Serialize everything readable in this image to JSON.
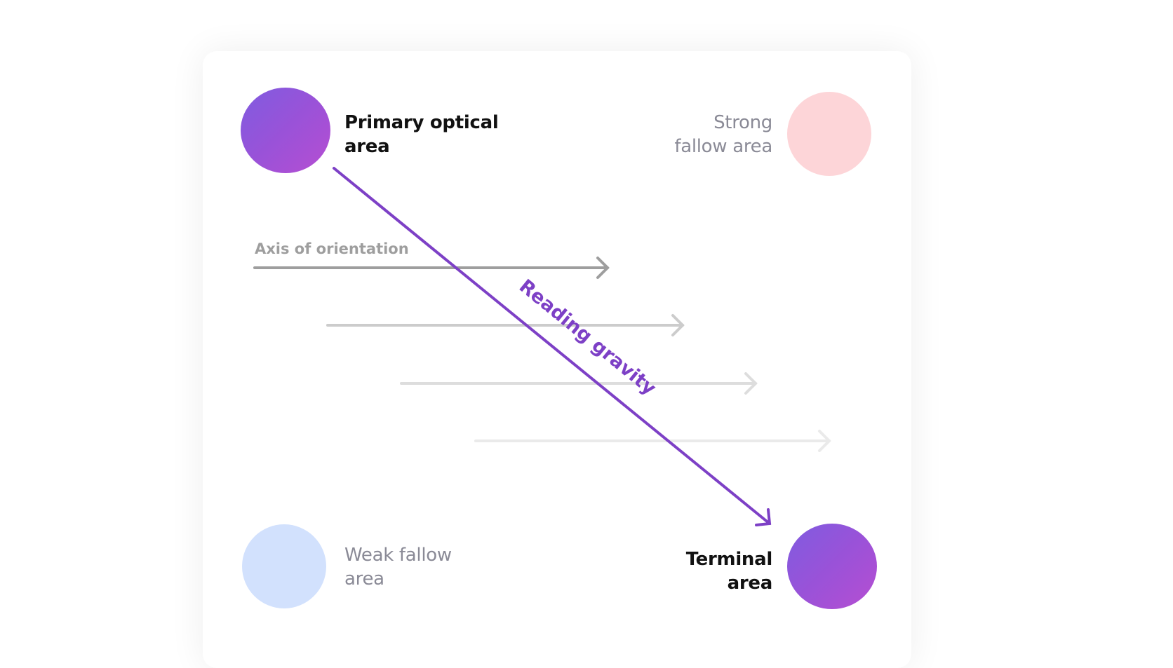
{
  "areas": {
    "primary": {
      "label_line1": "Primary optical",
      "label_line2": "area",
      "color": "#9a52d8"
    },
    "strong": {
      "label_line1": "Strong",
      "label_line2": "fallow area",
      "color": "#fdd5d8"
    },
    "weak": {
      "label_line1": "Weak fallow",
      "label_line2": "area",
      "color": "#d2e1fd"
    },
    "terminal": {
      "label_line1": "Terminal",
      "label_line2": "area",
      "color": "#9a52d8"
    }
  },
  "axis_label": "Axis of orientation",
  "gravity_label": "Reading gravity",
  "colors": {
    "gravity": "#7d40c6",
    "axis1": "#9e9e9e",
    "axis2": "#cccccc",
    "axis3": "#dddddd",
    "axis4": "#eaeaea"
  }
}
